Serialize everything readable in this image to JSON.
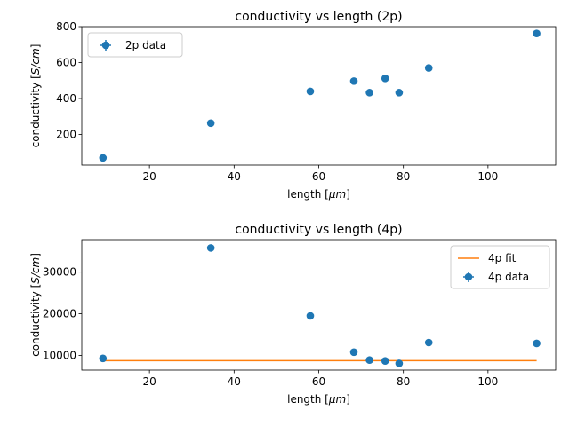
{
  "chart_data": [
    {
      "type": "scatter",
      "title": "conductivity vs length (2p)",
      "xlabel_prefix": "length [",
      "xlabel_unit": "μm",
      "xlabel_suffix": "]",
      "ylabel_prefix": "conductivity [",
      "ylabel_unit": "S/cm",
      "ylabel_suffix": "]",
      "xlim": [
        4,
        116
      ],
      "ylim": [
        30,
        800
      ],
      "xticks": [
        20,
        40,
        60,
        80,
        100
      ],
      "yticks": [
        200,
        400,
        600,
        800
      ],
      "legend_position": "upper left",
      "series": [
        {
          "name": "2p data",
          "kind": "errorbar-points",
          "color": "#1f77b4",
          "x": [
            9,
            34.5,
            58,
            68.3,
            72,
            75.7,
            79,
            86,
            111.5
          ],
          "y": [
            70,
            263,
            440,
            497,
            433,
            512,
            433,
            570,
            762
          ]
        }
      ]
    },
    {
      "type": "scatter",
      "title": "conductivity vs length (4p)",
      "xlabel_prefix": "length [",
      "xlabel_unit": "μm",
      "xlabel_suffix": "]",
      "ylabel_prefix": "conductivity [",
      "ylabel_unit": "S/cm",
      "ylabel_suffix": "]",
      "xlim": [
        4,
        116
      ],
      "ylim": [
        6500,
        37800
      ],
      "xticks": [
        20,
        40,
        60,
        80,
        100
      ],
      "yticks": [
        10000,
        20000,
        30000
      ],
      "legend_position": "upper right",
      "series": [
        {
          "name": "4p fit",
          "kind": "line",
          "color": "#ff7f0e",
          "x": [
            9,
            111.5
          ],
          "y": [
            8750,
            8750
          ]
        },
        {
          "name": "4p data",
          "kind": "errorbar-points",
          "color": "#1f77b4",
          "x": [
            9,
            34.5,
            58,
            68.3,
            72,
            75.7,
            79,
            86,
            111.5
          ],
          "y": [
            9300,
            35800,
            19500,
            10800,
            8900,
            8700,
            8100,
            13100,
            12900
          ]
        }
      ]
    }
  ]
}
